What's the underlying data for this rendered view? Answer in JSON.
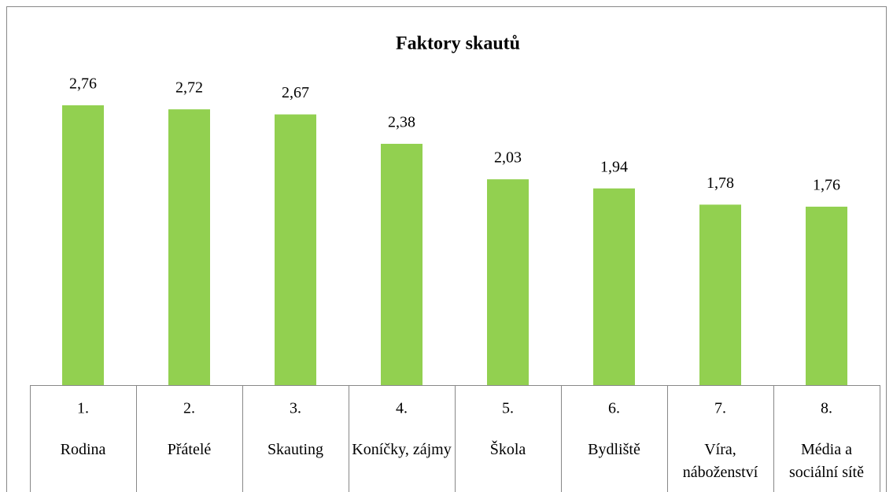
{
  "chart_data": {
    "type": "bar",
    "title": "Faktory skautů",
    "category_ranks": [
      "1.",
      "2.",
      "3.",
      "4.",
      "5.",
      "6.",
      "7.",
      "8."
    ],
    "categories": [
      "Rodina",
      "Přátelé",
      "Skauting",
      "Koníčky, zájmy",
      "Škola",
      "Bydliště",
      "Víra, náboženství",
      "Média a sociální sítě"
    ],
    "values": [
      2.76,
      2.72,
      2.67,
      2.38,
      2.03,
      1.94,
      1.78,
      1.76
    ],
    "value_labels": [
      "2,76",
      "2,72",
      "2,67",
      "2,38",
      "2,03",
      "1,94",
      "1,78",
      "1,76"
    ],
    "color": "#92d050",
    "ylim": [
      0,
      3
    ]
  }
}
